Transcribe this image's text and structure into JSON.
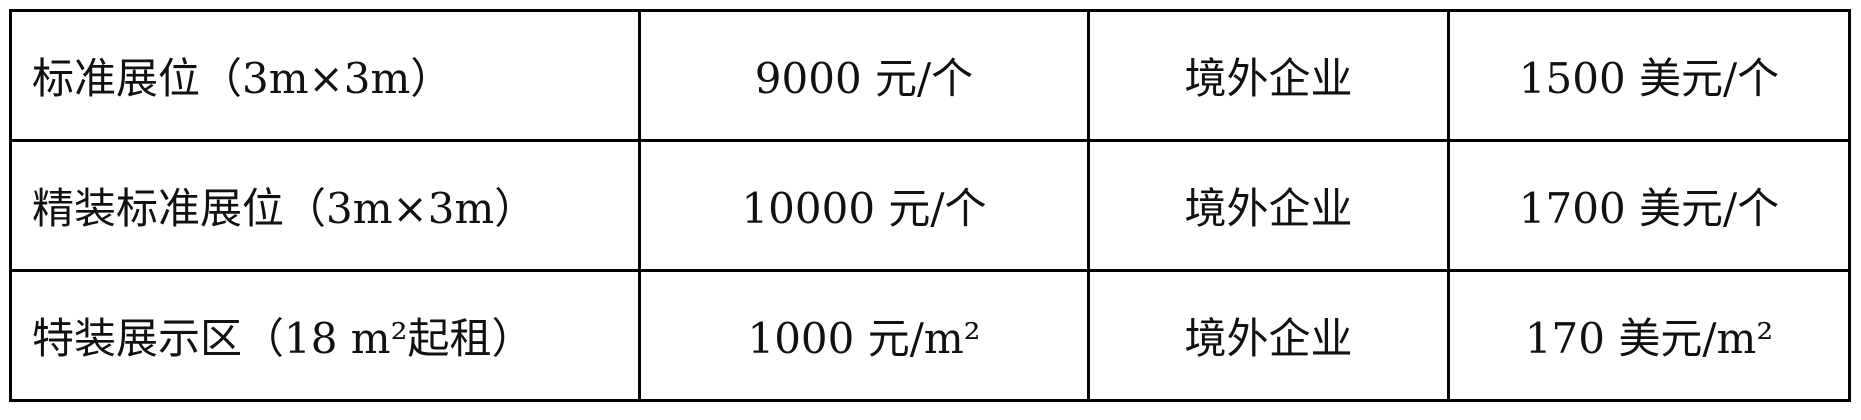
{
  "table": {
    "rows": [
      [
        "标准展位（3m×3m）",
        "9000 元/个",
        "境外企业",
        "1500 美元/个"
      ],
      [
        "精装标准展位（3m×3m）",
        "10000 元/个",
        "境外企业",
        "1700 美元/个"
      ],
      [
        "特装展示区（18 m²起租）",
        "1000 元/m²",
        "境外企业",
        "170 美元/m²"
      ]
    ]
  }
}
